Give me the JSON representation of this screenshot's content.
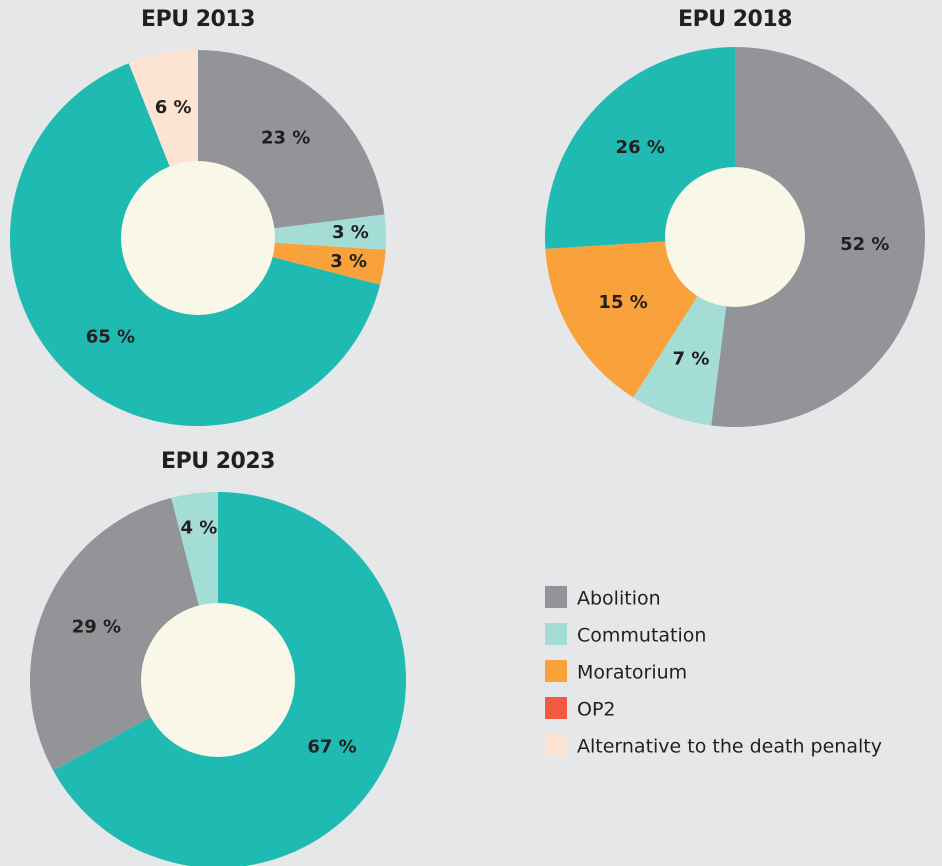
{
  "chart_data": [
    {
      "type": "pie",
      "title": "EPU 2013",
      "categories": [
        "Abolition",
        "Commutation",
        "Moratorium",
        null,
        "Alternative to the death penalty"
      ],
      "values": [
        23,
        3,
        3,
        65,
        6
      ],
      "value_labels": [
        "23 %",
        "3 %",
        "3 %",
        "65 %",
        "6 %"
      ],
      "colors": [
        "#929497",
        "#a4dcd6",
        "#f9a23b",
        "#1fbbb3",
        "#fde3d2"
      ]
    },
    {
      "type": "pie",
      "title": "EPU 2018",
      "categories": [
        "Abolition",
        "Commutation",
        "Moratorium",
        null
      ],
      "values": [
        52,
        7,
        15,
        26
      ],
      "value_labels": [
        "52 %",
        "7 %",
        "15 %",
        "26 %"
      ],
      "colors": [
        "#929497",
        "#a4dcd6",
        "#f9a23b",
        "#1fbbb3"
      ]
    },
    {
      "type": "pie",
      "title": "EPU 2023",
      "categories": [
        null,
        "Abolition",
        "Commutation"
      ],
      "values": [
        67,
        29,
        4
      ],
      "value_labels": [
        "67 %",
        "29 %",
        "4 %"
      ],
      "colors": [
        "#1fbbb3",
        "#929497",
        "#a4dcd6"
      ]
    }
  ],
  "legend": {
    "items": [
      {
        "name": "Abolition",
        "color": "#929497"
      },
      {
        "name": "Commutation",
        "color": "#a4dcd6"
      },
      {
        "name": "Moratorium",
        "color": "#f9a23b"
      },
      {
        "name": "OP2",
        "color": "#f15a40"
      },
      {
        "name": "Alternative to the death penalty",
        "color": "#fde3d2"
      }
    ]
  }
}
